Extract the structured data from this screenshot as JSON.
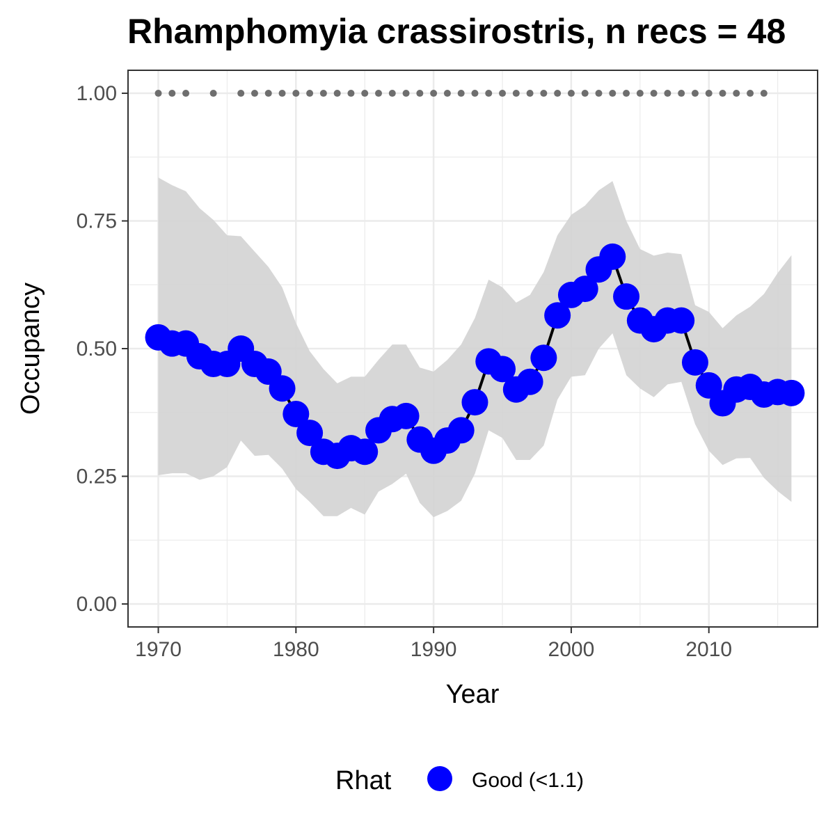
{
  "chart_data": {
    "type": "line",
    "title": "Rhamphomyia crassirostris, n recs = 48",
    "xlabel": "Year",
    "ylabel": "Occupancy",
    "xlim": [
      1967.8,
      2017.9
    ],
    "ylim": [
      -0.045,
      1.045
    ],
    "x_ticks": [
      1970,
      1980,
      1990,
      2000,
      2010
    ],
    "y_ticks": [
      0.0,
      0.25,
      0.5,
      0.75,
      1.0
    ],
    "y_tick_labels": [
      "0.00",
      "0.25",
      "0.50",
      "0.75",
      "1.00"
    ],
    "grid": true,
    "x": [
      1970,
      1971,
      1972,
      1973,
      1974,
      1975,
      1976,
      1977,
      1978,
      1979,
      1980,
      1981,
      1982,
      1983,
      1984,
      1985,
      1986,
      1987,
      1988,
      1989,
      1990,
      1991,
      1992,
      1993,
      1994,
      1995,
      1996,
      1997,
      1998,
      1999,
      2000,
      2001,
      2002,
      2003,
      2004,
      2005,
      2006,
      2007,
      2008,
      2009,
      2010,
      2011,
      2012,
      2013,
      2014,
      2015,
      2016
    ],
    "series": [
      {
        "name": "Good (<1.1)",
        "color": "#0000ff",
        "values": [
          0.522,
          0.51,
          0.51,
          0.485,
          0.47,
          0.47,
          0.5,
          0.47,
          0.455,
          0.422,
          0.372,
          0.335,
          0.298,
          0.29,
          0.305,
          0.298,
          0.34,
          0.362,
          0.368,
          0.322,
          0.3,
          0.32,
          0.34,
          0.395,
          0.475,
          0.46,
          0.42,
          0.435,
          0.482,
          0.565,
          0.605,
          0.617,
          0.655,
          0.68,
          0.602,
          0.555,
          0.538,
          0.555,
          0.555,
          0.473,
          0.428,
          0.393,
          0.42,
          0.425,
          0.41,
          0.415,
          0.413
        ]
      }
    ],
    "ci_upper": [
      0.835,
      0.82,
      0.808,
      0.775,
      0.752,
      0.722,
      0.72,
      0.69,
      0.66,
      0.62,
      0.55,
      0.495,
      0.46,
      0.432,
      0.445,
      0.445,
      0.478,
      0.508,
      0.508,
      0.463,
      0.455,
      0.478,
      0.508,
      0.56,
      0.635,
      0.62,
      0.59,
      0.605,
      0.65,
      0.722,
      0.762,
      0.78,
      0.81,
      0.828,
      0.75,
      0.695,
      0.682,
      0.688,
      0.685,
      0.585,
      0.572,
      0.54,
      0.565,
      0.582,
      0.607,
      0.648,
      0.683
    ],
    "ci_lower": [
      0.252,
      0.256,
      0.256,
      0.243,
      0.25,
      0.268,
      0.32,
      0.29,
      0.292,
      0.265,
      0.225,
      0.2,
      0.172,
      0.172,
      0.188,
      0.175,
      0.22,
      0.235,
      0.255,
      0.198,
      0.17,
      0.182,
      0.202,
      0.255,
      0.34,
      0.325,
      0.282,
      0.282,
      0.31,
      0.4,
      0.445,
      0.448,
      0.5,
      0.53,
      0.448,
      0.422,
      0.405,
      0.43,
      0.435,
      0.352,
      0.3,
      0.272,
      0.285,
      0.286,
      0.247,
      0.221,
      0.2
    ],
    "record_years": [
      1970,
      1971,
      1972,
      1974,
      1976,
      1977,
      1978,
      1979,
      1980,
      1981,
      1982,
      1983,
      1984,
      1985,
      1986,
      1987,
      1988,
      1989,
      1990,
      1991,
      1992,
      1993,
      1994,
      1995,
      1996,
      1997,
      1998,
      1999,
      2000,
      2001,
      2002,
      2003,
      2004,
      2005,
      2006,
      2007,
      2008,
      2009,
      2010,
      2011,
      2012,
      2013,
      2014
    ],
    "record_y": 1.0,
    "legend": {
      "title": "Rhat",
      "position": "bottom",
      "entries": [
        "Good (<1.1)"
      ]
    }
  },
  "colors": {
    "ribbon": "#d3d3d3",
    "line": "#000000",
    "points": "#0000ff",
    "records": "#6e6e6e",
    "grid": "#ebebeb",
    "panel_border": "#333333"
  }
}
